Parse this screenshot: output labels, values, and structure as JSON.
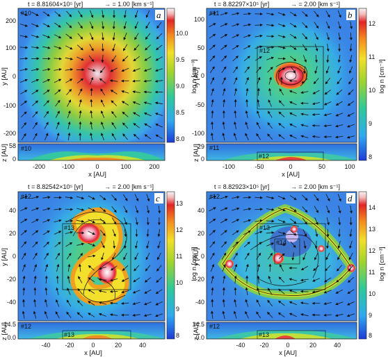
{
  "chart_data": [
    {
      "type": "heatmap",
      "label": "a",
      "time": "t = 8.81604×10⁵ [yr]",
      "vector_scale": "→ = 1.00 [km s⁻¹]",
      "level": "#10",
      "side_level": "#10",
      "xlabel": "x [AU]",
      "ylabel": "y [AU]",
      "zlabel": "z [AU]",
      "x_ticks": [
        "-200",
        "-100",
        "0",
        "100",
        "200"
      ],
      "y_ticks": [
        "200",
        "100",
        "0",
        "-100",
        "-200"
      ],
      "z_ticks": [
        "58",
        "0"
      ],
      "colorbar_label": "log n [cm⁻³]",
      "colorbar_ticks": [
        "10.0",
        "9.5",
        "9.0",
        "8.5",
        "8.0"
      ],
      "colorbar_range": [
        7.85,
        10.4
      ],
      "structure": "single central core"
    },
    {
      "type": "heatmap",
      "label": "b",
      "time": "t = 8.82297×10⁵ [yr]",
      "vector_scale": "→ = 2.00 [km s⁻¹]",
      "level": "#11",
      "inner_level": "#12",
      "side_level": "#11",
      "side_inner_level": "#12",
      "xlabel": "x [AU]",
      "ylabel": "y [AU]",
      "zlabel": "z [AU]",
      "x_ticks": [
        "-100",
        "-50",
        "0",
        "50",
        "100"
      ],
      "y_ticks": [
        "100",
        "50",
        "0",
        "-50",
        "-100"
      ],
      "z_ticks": [
        "29",
        "0"
      ],
      "colorbar_label": "log n [cm⁻³]",
      "colorbar_ticks": [
        "12",
        "11",
        "10",
        "9",
        "8"
      ],
      "colorbar_range": [
        7.9,
        12.5
      ],
      "structure": "rotating spiral core"
    },
    {
      "type": "heatmap",
      "label": "c",
      "time": "t = 8.82542×10⁵ [yr]",
      "vector_scale": "→ = 2.00 [km s⁻¹]",
      "level": "#12",
      "inner_level": "#13",
      "side_level": "#12",
      "side_inner_level": "#13",
      "xlabel": "x [AU]",
      "ylabel": "y [AU]",
      "zlabel": "z [AU]",
      "x_ticks": [
        "-40",
        "-20",
        "0",
        "20",
        "40"
      ],
      "y_ticks": [
        "40",
        "20",
        "0",
        "-20",
        "-40"
      ],
      "z_ticks": [
        "14.5",
        "0.0"
      ],
      "colorbar_label": "log n [cm⁻³]",
      "colorbar_ticks": [
        "13",
        "12",
        "11",
        "10",
        "9",
        "8"
      ],
      "colorbar_range": [
        7.9,
        13.6
      ],
      "structure": "S-shaped bar"
    },
    {
      "type": "heatmap",
      "label": "d",
      "time": "t = 8.82923×10⁵ [yr]",
      "vector_scale": "→ = 2.00 [km s⁻¹]",
      "level": "#12",
      "inner_level": "#13",
      "inner_level_2": "#14",
      "side_level": "#12",
      "side_inner_level": "#13",
      "xlabel": "x [AU]",
      "ylabel": "y [AU]",
      "zlabel": "z [AU]",
      "x_ticks": [
        "-40",
        "-20",
        "0",
        "20",
        "40"
      ],
      "y_ticks": [
        "40",
        "20",
        "0",
        "-20",
        "-40"
      ],
      "z_ticks": [
        "14.5",
        "0.0"
      ],
      "colorbar_label": "log n [cm⁻³]",
      "colorbar_ticks": [
        "14",
        "13",
        "12",
        "11",
        "10",
        "9",
        "8"
      ],
      "colorbar_range": [
        7.9,
        14.6
      ],
      "structure": "fragmented ring with multiple clumps"
    }
  ]
}
